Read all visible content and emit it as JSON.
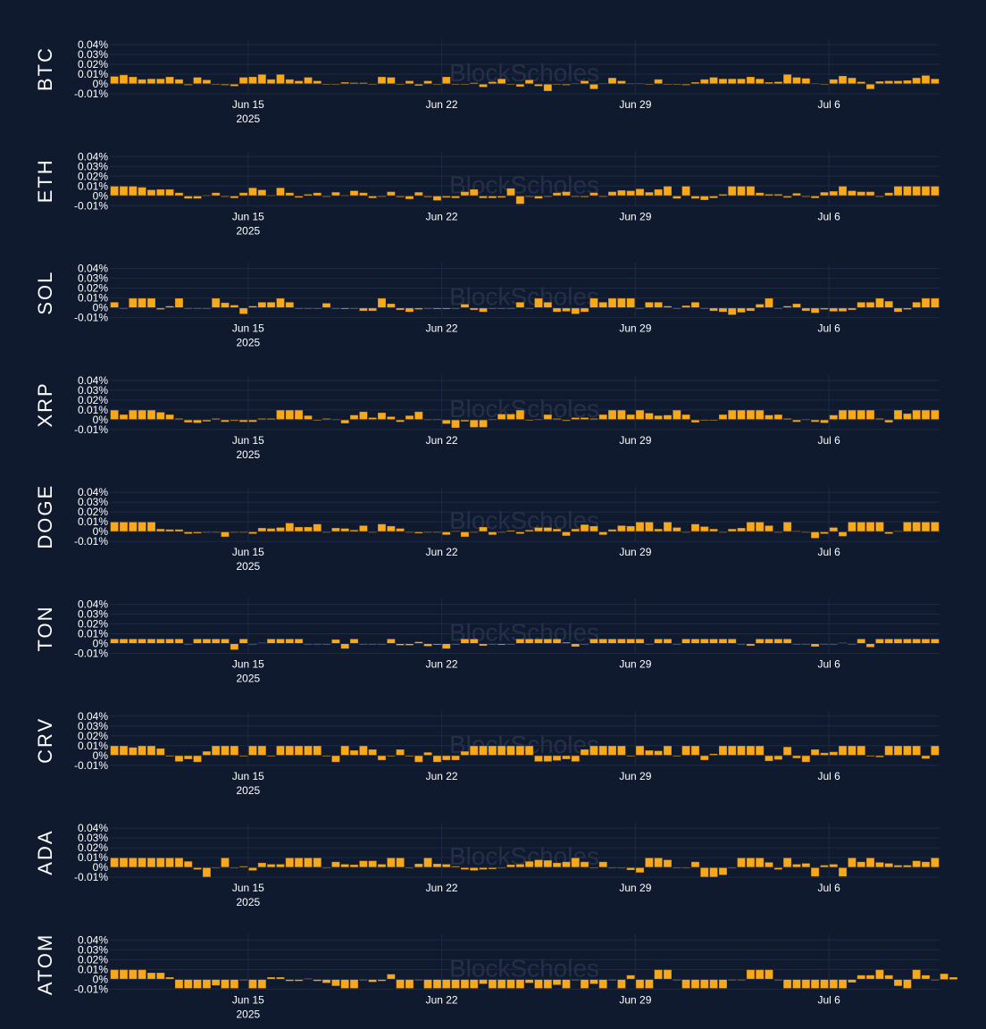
{
  "watermark": "BlockScholes",
  "colors": {
    "background": "#101a2e",
    "grid": "#1d2a45",
    "bar": "#f7a81b",
    "bar_edge": "#c98412",
    "text": "#ffffff"
  },
  "chart_data": {
    "type": "bar",
    "legend": "none",
    "grid": true,
    "x_start": "2025-06-10",
    "x_step_hours": 8,
    "ylim": [
      -0.01,
      0.04
    ],
    "y_ticks": [
      "0.04%",
      "0.03%",
      "0.02%",
      "0.01%",
      "0%",
      "-0.01%"
    ],
    "x_ticks": [
      {
        "date": "2025-06-15",
        "label": "Jun 15",
        "sublabel": "2025"
      },
      {
        "date": "2025-06-22",
        "label": "Jun 22"
      },
      {
        "date": "2025-06-29",
        "label": "Jun 29"
      },
      {
        "date": "2025-07-06",
        "label": "Jul 6"
      }
    ],
    "series": [
      {
        "name": "BTC",
        "values": [
          0.0075,
          0.009,
          0.007,
          0.0045,
          0.005,
          0.005,
          0.007,
          0.0045,
          -0.001,
          0.0065,
          0.004,
          -0.0005,
          -0.001,
          -0.002,
          0.0065,
          0.007,
          0.0095,
          0.0045,
          0.0095,
          0.0045,
          0.003,
          0.0065,
          0.003,
          0.0,
          -0.0005,
          0.0015,
          0.001,
          0.001,
          0.0,
          0.007,
          0.0065,
          0.0,
          0.003,
          -0.0015,
          0.003,
          0.0,
          0.007,
          -0.0005,
          -0.0005,
          0.001,
          -0.003,
          0.002,
          0.005,
          0.0,
          -0.0025,
          0.004,
          -0.002,
          -0.007,
          0.0,
          -0.001,
          0.0005,
          0.003,
          -0.005,
          0.0005,
          0.006,
          0.003,
          0.0005,
          0.0005,
          0.0,
          0.0045,
          -0.0005,
          -0.0005,
          -0.001,
          0.0015,
          0.0045,
          0.0065,
          0.005,
          0.005,
          0.005,
          0.007,
          0.005,
          0.0015,
          0.002,
          0.0095,
          0.0065,
          0.0055,
          0.0005,
          0.0,
          0.0045,
          0.008,
          0.006,
          0.002,
          -0.005,
          0.0025,
          0.003,
          0.003,
          0.0035,
          0.006,
          0.0085,
          0.005
        ]
      },
      {
        "name": "ETH",
        "values": [
          0.0095,
          0.0095,
          0.0095,
          0.0085,
          0.006,
          0.0065,
          0.0065,
          0.003,
          -0.0025,
          -0.0025,
          0.0005,
          0.003,
          0.0,
          -0.002,
          0.003,
          0.008,
          0.006,
          0.0005,
          0.008,
          0.003,
          -0.0015,
          0.0015,
          0.003,
          0.0,
          0.0035,
          0.0005,
          0.005,
          0.003,
          -0.002,
          0.0,
          0.004,
          -0.001,
          -0.003,
          0.0035,
          -0.001,
          -0.0045,
          -0.0015,
          -0.002,
          0.004,
          0.0065,
          -0.002,
          -0.002,
          -0.0015,
          0.0075,
          -0.008,
          0.0,
          -0.0025,
          0.0,
          0.003,
          0.004,
          0.0,
          -0.001,
          0.003,
          0.0,
          0.004,
          0.0055,
          0.005,
          0.007,
          0.0035,
          0.0065,
          0.0095,
          -0.0025,
          0.0095,
          -0.0025,
          -0.004,
          -0.002,
          0.0015,
          0.0095,
          0.0095,
          0.0095,
          0.003,
          0.0015,
          0.0015,
          -0.0015,
          0.0025,
          0.0,
          -0.002,
          0.0035,
          0.0045,
          0.0095,
          0.005,
          0.004,
          0.004,
          0.0,
          0.003,
          0.0095,
          0.0095,
          0.0095,
          0.0095,
          0.0095
        ]
      },
      {
        "name": "SOL",
        "values": [
          0.0055,
          0.0,
          0.0095,
          0.0095,
          0.0095,
          -0.0015,
          0.0015,
          0.0095,
          -0.0005,
          -0.0005,
          0.0,
          0.0095,
          0.005,
          0.0025,
          -0.006,
          0.0015,
          0.0055,
          0.0055,
          0.0095,
          0.0055,
          0.0,
          0.0,
          0.0,
          0.0045,
          0.0,
          -0.001,
          -0.0005,
          -0.003,
          -0.003,
          0.0095,
          0.004,
          -0.002,
          -0.004,
          -0.0015,
          0.0,
          -0.001,
          -0.001,
          0.0,
          0.0035,
          -0.002,
          -0.004,
          0.0,
          0.0,
          0.0,
          0.0055,
          -0.0005,
          0.0095,
          0.0055,
          -0.004,
          -0.0035,
          -0.006,
          -0.004,
          0.0095,
          0.0055,
          0.0095,
          0.0095,
          0.0095,
          -0.0005,
          0.0055,
          0.0055,
          0.0015,
          0.0,
          0.002,
          0.0055,
          0.0,
          -0.003,
          -0.004,
          -0.007,
          -0.0045,
          -0.003,
          0.0035,
          0.0095,
          0.0,
          0.0015,
          0.004,
          -0.003,
          -0.005,
          -0.0015,
          -0.0035,
          -0.0035,
          -0.002,
          0.0055,
          0.0055,
          0.0095,
          0.0065,
          -0.004,
          -0.0015,
          0.0055,
          0.0095,
          0.0095
        ]
      },
      {
        "name": "XRP",
        "values": [
          0.0095,
          0.005,
          0.0095,
          0.0095,
          0.0095,
          0.0075,
          0.005,
          0.001,
          -0.0025,
          -0.003,
          -0.0015,
          0.001,
          -0.002,
          -0.001,
          -0.002,
          -0.002,
          0.001,
          0.001,
          0.0095,
          0.0095,
          0.0095,
          0.004,
          0.0,
          0.001,
          0.0005,
          -0.0035,
          0.0045,
          0.008,
          0.002,
          0.007,
          0.003,
          -0.002,
          0.004,
          0.008,
          0.0005,
          0.0005,
          -0.004,
          -0.008,
          -0.0015,
          -0.0075,
          -0.0075,
          0.0005,
          0.0055,
          0.0055,
          0.0095,
          0.0,
          0.0005,
          0.005,
          0.001,
          -0.001,
          0.002,
          0.002,
          0.001,
          0.005,
          0.0095,
          0.0095,
          0.005,
          0.0095,
          0.0065,
          0.004,
          0.0045,
          0.0095,
          0.005,
          -0.0025,
          -0.0005,
          0.0,
          0.005,
          0.0095,
          0.0095,
          0.0095,
          0.0095,
          0.0045,
          0.005,
          0.001,
          -0.002,
          0.0005,
          -0.002,
          -0.003,
          0.0045,
          0.0095,
          0.0095,
          0.0095,
          0.0095,
          0.001,
          -0.0025,
          0.0095,
          0.006,
          0.0095,
          0.0095,
          0.0095
        ]
      },
      {
        "name": "DOGE",
        "values": [
          0.0095,
          0.0095,
          0.0095,
          0.0095,
          0.0095,
          0.0025,
          0.002,
          0.002,
          -0.002,
          -0.0015,
          0.0,
          0.0,
          -0.005,
          0.0,
          0.0,
          -0.002,
          0.0035,
          0.003,
          0.004,
          0.0085,
          0.0045,
          0.0045,
          0.0075,
          -0.0005,
          0.0035,
          0.003,
          0.0015,
          0.006,
          0.0,
          0.0075,
          0.0055,
          0.003,
          0.0,
          -0.0015,
          0.0,
          0.0,
          -0.003,
          0.0005,
          -0.005,
          0.0,
          0.0045,
          -0.003,
          0.0,
          0.001,
          -0.002,
          0.0015,
          0.004,
          0.004,
          0.0025,
          -0.004,
          0.0025,
          0.007,
          0.0055,
          -0.003,
          0.002,
          0.006,
          0.0055,
          0.0095,
          0.0095,
          0.0025,
          0.0095,
          0.004,
          0.0,
          0.0075,
          0.005,
          0.0025,
          0.0,
          0.0025,
          0.0035,
          0.0095,
          0.0095,
          0.006,
          0.0,
          0.0095,
          0.0005,
          -0.0005,
          -0.0065,
          -0.002,
          0.004,
          -0.0045,
          0.0095,
          0.0095,
          0.0095,
          0.0095,
          -0.002,
          0.0005,
          0.0095,
          0.0095,
          0.0095,
          0.0095
        ]
      },
      {
        "name": "TON",
        "values": [
          0.0045,
          0.0045,
          0.0045,
          0.0045,
          0.0045,
          0.0045,
          0.0045,
          0.0045,
          -0.0005,
          0.0045,
          0.0045,
          0.0045,
          0.0045,
          -0.006,
          0.0045,
          0.0,
          0.0005,
          0.0045,
          0.0045,
          0.0045,
          0.0045,
          0.0,
          0.0,
          0.0,
          0.004,
          -0.005,
          0.0045,
          0.0,
          0.0,
          0.0,
          0.0045,
          -0.0015,
          -0.0015,
          0.0015,
          -0.0025,
          -0.001,
          -0.005,
          0.0,
          0.0045,
          0.0045,
          -0.002,
          0.0,
          -0.001,
          0.0,
          0.0045,
          0.0045,
          0.0045,
          0.0045,
          0.0045,
          0.001,
          -0.003,
          0.0,
          0.0045,
          0.0045,
          0.0045,
          0.0045,
          0.0045,
          0.0045,
          0.0,
          0.0045,
          0.0045,
          0.0,
          0.0045,
          0.0045,
          0.0045,
          0.0045,
          0.0045,
          0.0045,
          0.0,
          -0.002,
          0.0045,
          0.0045,
          0.0045,
          0.0045,
          0.0,
          0.0,
          -0.003,
          0.0,
          0.0,
          0.0005,
          0.0,
          0.0045,
          -0.0035,
          0.0045,
          0.0045,
          0.0045,
          0.0045,
          0.0045,
          0.0045,
          0.0045
        ]
      },
      {
        "name": "CRV",
        "values": [
          0.0095,
          0.0095,
          0.008,
          0.0095,
          0.0095,
          0.007,
          0.0,
          -0.006,
          -0.0035,
          -0.0065,
          0.004,
          0.0095,
          0.0095,
          0.0095,
          0.0,
          0.0095,
          0.0095,
          -0.0005,
          0.0095,
          0.0095,
          0.0095,
          0.0095,
          0.0095,
          0.0,
          -0.0065,
          0.0095,
          0.005,
          0.0095,
          0.006,
          -0.0045,
          0.0,
          0.006,
          0.0,
          -0.0065,
          0.003,
          -0.0065,
          -0.0045,
          -0.0045,
          0.004,
          0.0095,
          0.0095,
          0.0095,
          0.0095,
          0.0095,
          0.0095,
          0.0095,
          -0.006,
          -0.006,
          -0.005,
          -0.0035,
          -0.006,
          0.006,
          0.0095,
          0.0095,
          0.0095,
          0.0095,
          0.0,
          0.0095,
          0.005,
          0.0045,
          0.0095,
          0.0,
          0.0095,
          0.0095,
          -0.0045,
          0.0015,
          0.0095,
          0.0095,
          0.0095,
          0.0095,
          0.0095,
          -0.0055,
          -0.004,
          0.0085,
          -0.0025,
          -0.0065,
          0.006,
          0.0025,
          0.0035,
          0.0095,
          0.0095,
          0.0095,
          0.0,
          -0.0015,
          0.0095,
          0.0095,
          0.0095,
          0.0095,
          -0.003,
          0.0095
        ]
      },
      {
        "name": "ADA",
        "values": [
          0.0095,
          0.0095,
          0.0095,
          0.0095,
          0.0095,
          0.0095,
          0.0095,
          0.0095,
          0.006,
          -0.002,
          -0.0095,
          0.0,
          0.0095,
          0.0,
          0.001,
          -0.003,
          0.0045,
          0.003,
          0.003,
          0.0095,
          0.0095,
          0.0095,
          0.0095,
          0.0,
          0.0055,
          0.003,
          0.0025,
          0.0065,
          0.0065,
          0.003,
          0.0095,
          0.0095,
          -0.0005,
          0.0035,
          0.0095,
          0.0035,
          0.003,
          0.001,
          -0.002,
          -0.003,
          -0.002,
          -0.0015,
          0.0,
          0.0025,
          0.003,
          0.006,
          0.0075,
          0.007,
          0.0045,
          0.0055,
          0.0095,
          0.0055,
          0.0,
          0.0055,
          0.0,
          0.0,
          -0.0025,
          -0.005,
          0.0095,
          0.0095,
          0.0075,
          0.0,
          0.0,
          0.0055,
          -0.0095,
          -0.0095,
          -0.0075,
          0.0,
          0.0095,
          0.0095,
          0.0095,
          0.005,
          -0.002,
          0.0095,
          0.003,
          0.004,
          -0.009,
          0.002,
          0.003,
          -0.009,
          0.0095,
          0.0055,
          0.0095,
          0.005,
          0.004,
          0.002,
          0.002,
          0.0065,
          0.0055,
          0.0095
        ]
      },
      {
        "name": "ATOM",
        "values": [
          0.0095,
          0.0095,
          0.0095,
          0.0095,
          0.0065,
          0.0065,
          0.002,
          -0.009,
          -0.009,
          -0.009,
          -0.009,
          -0.006,
          -0.009,
          -0.009,
          -0.0005,
          -0.009,
          -0.009,
          0.002,
          0.002,
          -0.0015,
          -0.0015,
          0.0005,
          -0.0015,
          -0.0035,
          -0.0065,
          -0.009,
          -0.009,
          0.0,
          -0.0025,
          -0.0015,
          0.005,
          -0.009,
          -0.009,
          0.0,
          -0.009,
          -0.009,
          -0.009,
          -0.009,
          -0.009,
          -0.009,
          -0.0045,
          -0.009,
          -0.009,
          -0.009,
          -0.009,
          -0.0035,
          -0.009,
          -0.009,
          -0.0055,
          -0.009,
          0.0,
          -0.009,
          -0.0045,
          -0.009,
          0.0,
          -0.009,
          0.004,
          -0.009,
          -0.009,
          0.0095,
          0.0095,
          0.0,
          -0.009,
          -0.009,
          -0.009,
          -0.009,
          -0.009,
          0.0,
          0.0,
          0.0095,
          0.0095,
          0.0095,
          0.0,
          -0.009,
          -0.009,
          -0.009,
          -0.009,
          -0.009,
          -0.009,
          -0.009,
          -0.003,
          0.004,
          0.004,
          0.0095,
          0.004,
          -0.0065,
          -0.009,
          0.0095,
          0.004,
          0.0,
          0.0055,
          0.002
        ]
      }
    ]
  }
}
